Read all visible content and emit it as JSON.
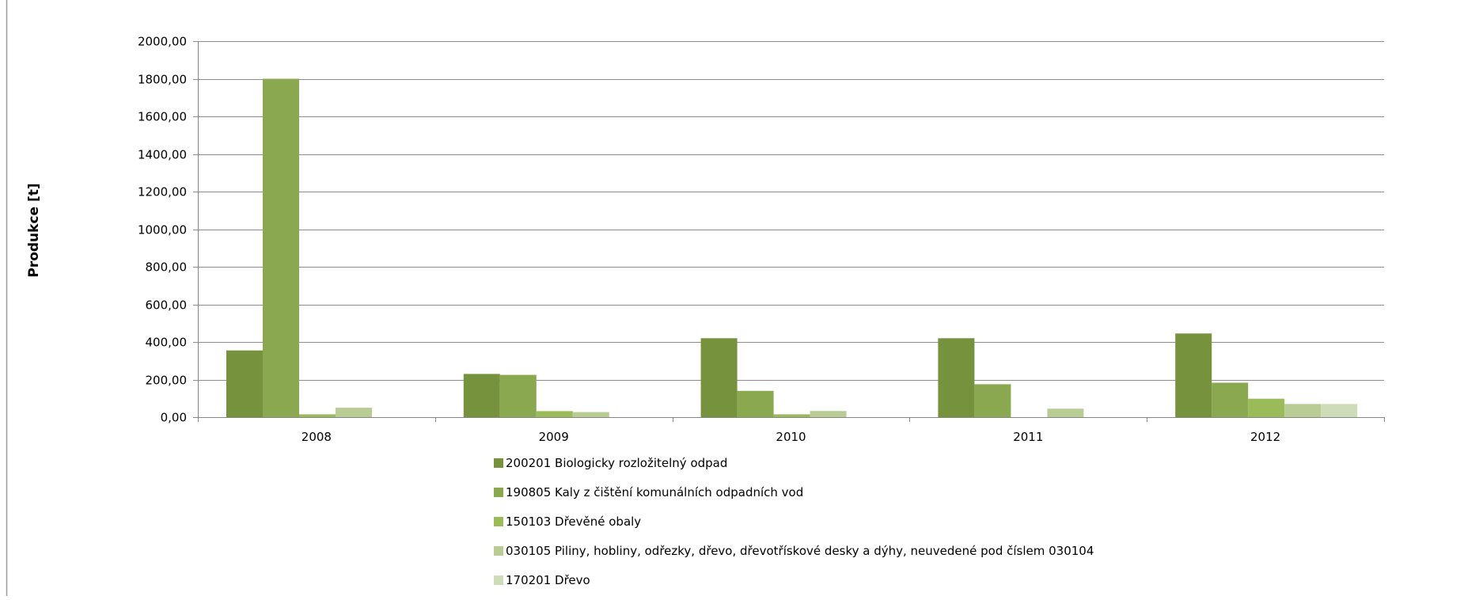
{
  "chart_data": {
    "type": "bar",
    "title": "",
    "xlabel": "",
    "ylabel": "Produkce [t]",
    "ylim": [
      0,
      2000
    ],
    "y_tick_step": 200,
    "y_tick_labels": [
      "0,00",
      "200,00",
      "400,00",
      "600,00",
      "800,00",
      "1000,00",
      "1200,00",
      "1400,00",
      "1600,00",
      "1800,00",
      "2000,00"
    ],
    "grid": true,
    "legend_position": "bottom",
    "categories": [
      "2008",
      "2009",
      "2010",
      "2011",
      "2012"
    ],
    "series": [
      {
        "name": "200201 Biologicky rozložitelný odpad",
        "color": "#76923c",
        "values": [
          355,
          230,
          420,
          420,
          445
        ]
      },
      {
        "name": "190805 Kaly z čištění komunálních odpadních vod",
        "color": "#8aa84f",
        "values": [
          1800,
          225,
          140,
          175,
          183
        ]
      },
      {
        "name": "150103 Dřevěné obaly",
        "color": "#9bbb59",
        "values": [
          15,
          32,
          15,
          0,
          98
        ]
      },
      {
        "name": "030105 Piliny, hobliny, odřezky, dřevo, dřevotřískové desky a dýhy, neuvedené pod číslem 030104",
        "color": "#b8cc93",
        "values": [
          50,
          27,
          33,
          45,
          70
        ]
      },
      {
        "name": "170201 Dřevo",
        "color": "#cfdcb8",
        "values": [
          0,
          0,
          0,
          0,
          70
        ]
      }
    ]
  }
}
